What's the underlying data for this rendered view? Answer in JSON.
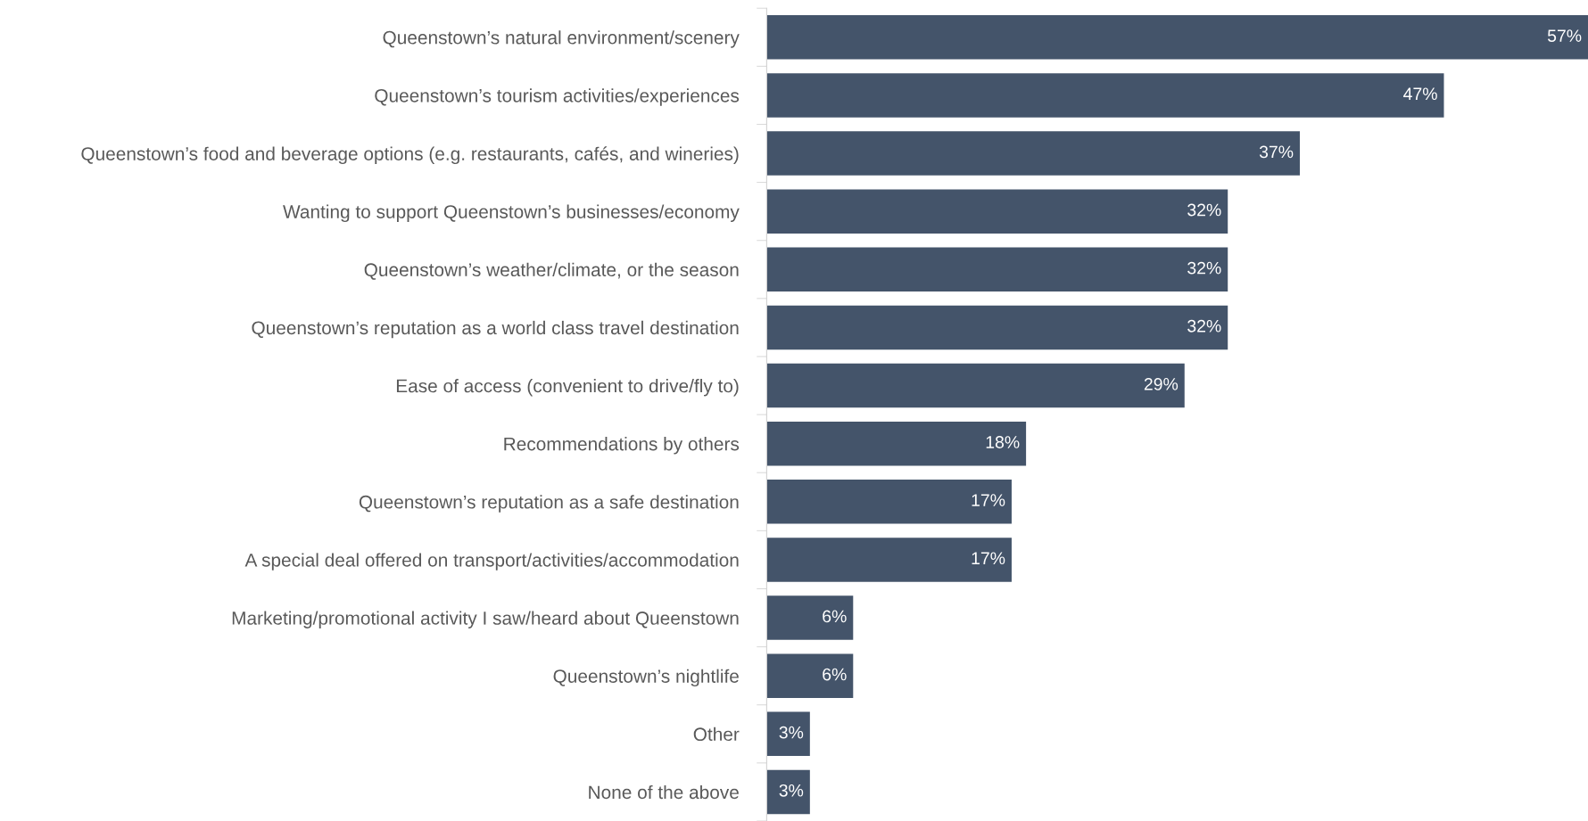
{
  "chart_data": {
    "type": "bar",
    "orientation": "horizontal",
    "categories": [
      "Queenstown’s natural environment/scenery",
      "Queenstown’s tourism activities/experiences",
      "Queenstown’s food and beverage options (e.g. restaurants, cafés, and wineries)",
      "Wanting to support Queenstown’s businesses/economy",
      "Queenstown’s weather/climate, or the season",
      "Queenstown’s reputation as a world class travel destination",
      "Ease of access (convenient to drive/fly to)",
      "Recommendations by others",
      "Queenstown’s reputation as a safe destination",
      "A special deal offered on transport/activities/accommodation",
      "Marketing/promotional activity I saw/heard about Queenstown",
      "Queenstown’s nightlife",
      "Other",
      "None of the above"
    ],
    "values": [
      57,
      47,
      37,
      32,
      32,
      32,
      29,
      18,
      17,
      17,
      6,
      6,
      3,
      3
    ],
    "value_labels": [
      "57%",
      "47%",
      "37%",
      "32%",
      "32%",
      "32%",
      "29%",
      "18%",
      "17%",
      "17%",
      "6%",
      "6%",
      "3%",
      "3%"
    ],
    "color": "#44546a",
    "tick_labels": "y",
    "grid": false
  }
}
